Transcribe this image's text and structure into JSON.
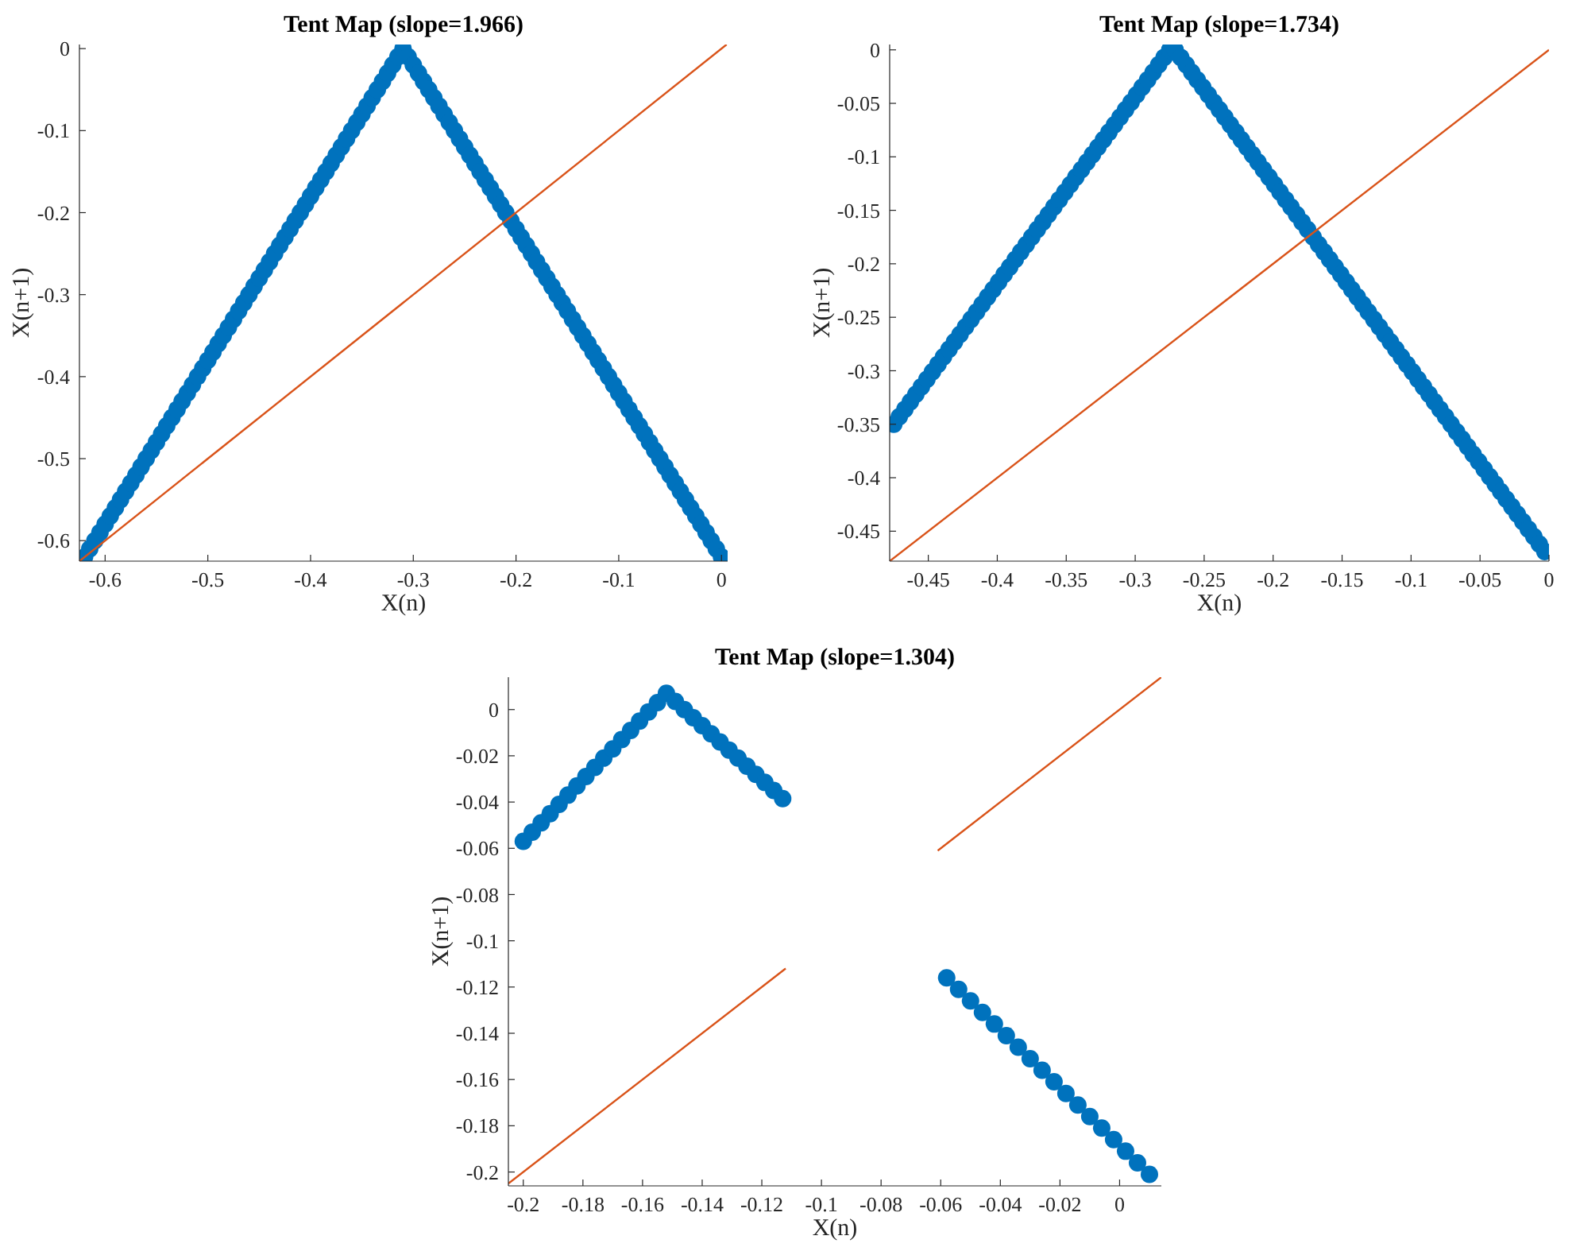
{
  "chart_data": [
    {
      "type": "scatter",
      "title": "Tent Map (slope=1.966)",
      "xlabel": "X(n)",
      "ylabel": "X(n+1)",
      "xlim": [
        -0.625,
        0.006
      ],
      "ylim": [
        -0.625,
        0.005
      ],
      "xticks": [
        -0.6,
        -0.5,
        -0.4,
        -0.3,
        -0.2,
        -0.1,
        0
      ],
      "yticks": [
        -0.6,
        -0.5,
        -0.4,
        -0.3,
        -0.2,
        -0.1,
        0
      ],
      "grid": false,
      "series": [
        {
          "color": "#0072bd",
          "marker": "circle",
          "x": [
            -0.62,
            -0.615,
            -0.61,
            -0.605,
            -0.6,
            -0.595,
            -0.59,
            -0.585,
            -0.58,
            -0.575,
            -0.57,
            -0.565,
            -0.56,
            -0.555,
            -0.55,
            -0.545,
            -0.54,
            -0.535,
            -0.53,
            -0.525,
            -0.52,
            -0.515,
            -0.51,
            -0.505,
            -0.5,
            -0.495,
            -0.49,
            -0.485,
            -0.48,
            -0.475,
            -0.47,
            -0.465,
            -0.46,
            -0.455,
            -0.45,
            -0.445,
            -0.44,
            -0.435,
            -0.43,
            -0.425,
            -0.42,
            -0.415,
            -0.41,
            -0.405,
            -0.4,
            -0.395,
            -0.39,
            -0.385,
            -0.38,
            -0.375,
            -0.37,
            -0.365,
            -0.36,
            -0.355,
            -0.35,
            -0.345,
            -0.34,
            -0.335,
            -0.33,
            -0.325,
            -0.32,
            -0.315,
            -0.31,
            -0.305,
            -0.3,
            -0.295,
            -0.29,
            -0.285,
            -0.28,
            -0.275,
            -0.27,
            -0.265,
            -0.26,
            -0.255,
            -0.25,
            -0.245,
            -0.24,
            -0.235,
            -0.23,
            -0.225,
            -0.22,
            -0.215,
            -0.21,
            -0.205,
            -0.2,
            -0.195,
            -0.19,
            -0.185,
            -0.18,
            -0.175,
            -0.17,
            -0.165,
            -0.16,
            -0.155,
            -0.15,
            -0.145,
            -0.14,
            -0.135,
            -0.13,
            -0.125,
            -0.12,
            -0.115,
            -0.11,
            -0.105,
            -0.1,
            -0.095,
            -0.09,
            -0.085,
            -0.08,
            -0.075,
            -0.07,
            -0.065,
            -0.06,
            -0.055,
            -0.05,
            -0.045,
            -0.04,
            -0.035,
            -0.03,
            -0.025,
            -0.02,
            -0.015,
            -0.01,
            -0.005,
            0
          ],
          "values": [
            -0.62,
            -0.61,
            -0.6,
            -0.59,
            -0.58,
            -0.57,
            -0.56,
            -0.55,
            -0.54,
            -0.53,
            -0.52,
            -0.51,
            -0.5,
            -0.49,
            -0.48,
            -0.47,
            -0.46,
            -0.45,
            -0.44,
            -0.43,
            -0.42,
            -0.41,
            -0.4,
            -0.39,
            -0.38,
            -0.37,
            -0.36,
            -0.35,
            -0.34,
            -0.33,
            -0.32,
            -0.31,
            -0.3,
            -0.29,
            -0.28,
            -0.27,
            -0.26,
            -0.25,
            -0.24,
            -0.23,
            -0.22,
            -0.21,
            -0.2,
            -0.19,
            -0.18,
            -0.17,
            -0.16,
            -0.15,
            -0.14,
            -0.13,
            -0.12,
            -0.11,
            -0.1,
            -0.09,
            -0.08,
            -0.07,
            -0.06,
            -0.05,
            -0.04,
            -0.03,
            -0.02,
            -0.01,
            0,
            -0.01,
            -0.02,
            -0.03,
            -0.04,
            -0.05,
            -0.06,
            -0.07,
            -0.08,
            -0.09,
            -0.1,
            -0.11,
            -0.12,
            -0.13,
            -0.14,
            -0.15,
            -0.16,
            -0.17,
            -0.18,
            -0.19,
            -0.2,
            -0.21,
            -0.22,
            -0.23,
            -0.24,
            -0.25,
            -0.26,
            -0.27,
            -0.28,
            -0.29,
            -0.3,
            -0.31,
            -0.32,
            -0.33,
            -0.34,
            -0.35,
            -0.36,
            -0.37,
            -0.38,
            -0.39,
            -0.4,
            -0.41,
            -0.42,
            -0.43,
            -0.44,
            -0.45,
            -0.46,
            -0.47,
            -0.48,
            -0.49,
            -0.5,
            -0.51,
            -0.52,
            -0.53,
            -0.54,
            -0.55,
            -0.56,
            -0.57,
            -0.58,
            -0.59,
            -0.6,
            -0.61,
            -0.62
          ]
        },
        {
          "type": "line",
          "color": "#d95319",
          "marker": "none",
          "line_style": "solid",
          "x": [
            -0.625,
            0.005
          ],
          "values": [
            -0.625,
            0.005
          ]
        }
      ]
    },
    {
      "type": "scatter",
      "title": "Tent Map (slope=1.734)",
      "xlabel": "X(n)",
      "ylabel": "X(n+1)",
      "xlim": [
        -0.478,
        0
      ],
      "ylim": [
        -0.478,
        0.005
      ],
      "xticks": [
        -0.45,
        -0.4,
        -0.35,
        -0.3,
        -0.25,
        -0.2,
        -0.15,
        -0.1,
        -0.05,
        0
      ],
      "yticks": [
        -0.45,
        -0.4,
        -0.35,
        -0.3,
        -0.25,
        -0.2,
        -0.15,
        -0.1,
        -0.05,
        0
      ],
      "grid": false,
      "series": [
        {
          "color": "#0072bd",
          "marker": "circle",
          "x": [
            -0.475,
            -0.471,
            -0.467,
            -0.463,
            -0.459,
            -0.455,
            -0.451,
            -0.447,
            -0.443,
            -0.439,
            -0.435,
            -0.431,
            -0.427,
            -0.423,
            -0.419,
            -0.415,
            -0.411,
            -0.407,
            -0.403,
            -0.399,
            -0.395,
            -0.391,
            -0.387,
            -0.383,
            -0.379,
            -0.375,
            -0.371,
            -0.367,
            -0.363,
            -0.359,
            -0.355,
            -0.351,
            -0.347,
            -0.343,
            -0.339,
            -0.335,
            -0.331,
            -0.327,
            -0.323,
            -0.319,
            -0.315,
            -0.311,
            -0.307,
            -0.303,
            -0.299,
            -0.295,
            -0.291,
            -0.287,
            -0.283,
            -0.279,
            -0.275,
            -0.271,
            -0.267,
            -0.263,
            -0.259,
            -0.255,
            -0.251,
            -0.247,
            -0.243,
            -0.239,
            -0.235,
            -0.231,
            -0.227,
            -0.223,
            -0.219,
            -0.215,
            -0.211,
            -0.207,
            -0.203,
            -0.199,
            -0.195,
            -0.191,
            -0.187,
            -0.183,
            -0.179,
            -0.175,
            -0.171,
            -0.167,
            -0.163,
            -0.159,
            -0.155,
            -0.151,
            -0.147,
            -0.143,
            -0.139,
            -0.135,
            -0.131,
            -0.127,
            -0.123,
            -0.119,
            -0.115,
            -0.111,
            -0.107,
            -0.103,
            -0.099,
            -0.095,
            -0.091,
            -0.087,
            -0.083,
            -0.079,
            -0.075,
            -0.071,
            -0.067,
            -0.063,
            -0.059,
            -0.055,
            -0.051,
            -0.047,
            -0.043,
            -0.039,
            -0.035,
            -0.031,
            -0.027,
            -0.023,
            -0.019,
            -0.015,
            -0.011,
            -0.007,
            -0.003
          ],
          "values": [
            -0.35,
            -0.343,
            -0.336,
            -0.329,
            -0.322,
            -0.315,
            -0.308,
            -0.301,
            -0.294,
            -0.287,
            -0.28,
            -0.273,
            -0.266,
            -0.259,
            -0.252,
            -0.245,
            -0.238,
            -0.231,
            -0.224,
            -0.217,
            -0.21,
            -0.203,
            -0.196,
            -0.189,
            -0.182,
            -0.175,
            -0.168,
            -0.161,
            -0.154,
            -0.147,
            -0.14,
            -0.133,
            -0.126,
            -0.119,
            -0.112,
            -0.105,
            -0.098,
            -0.091,
            -0.084,
            -0.077,
            -0.07,
            -0.063,
            -0.056,
            -0.049,
            -0.042,
            -0.035,
            -0.028,
            -0.021,
            -0.014,
            -0.007,
            0,
            0,
            -0.007,
            -0.014,
            -0.021,
            -0.028,
            -0.035,
            -0.042,
            -0.049,
            -0.056,
            -0.063,
            -0.07,
            -0.077,
            -0.084,
            -0.091,
            -0.098,
            -0.105,
            -0.112,
            -0.119,
            -0.126,
            -0.133,
            -0.14,
            -0.147,
            -0.154,
            -0.161,
            -0.168,
            -0.175,
            -0.182,
            -0.189,
            -0.196,
            -0.203,
            -0.21,
            -0.217,
            -0.224,
            -0.231,
            -0.238,
            -0.245,
            -0.252,
            -0.259,
            -0.266,
            -0.273,
            -0.28,
            -0.287,
            -0.294,
            -0.301,
            -0.308,
            -0.315,
            -0.322,
            -0.329,
            -0.336,
            -0.343,
            -0.35,
            -0.357,
            -0.364,
            -0.371,
            -0.378,
            -0.385,
            -0.392,
            -0.399,
            -0.406,
            -0.413,
            -0.42,
            -0.427,
            -0.434,
            -0.441,
            -0.448,
            -0.455,
            -0.462,
            -0.469
          ]
        },
        {
          "type": "line",
          "color": "#d95319",
          "marker": "none",
          "line_style": "solid",
          "x": [
            -0.478,
            0
          ],
          "values": [
            -0.478,
            0
          ]
        }
      ]
    },
    {
      "type": "scatter",
      "title": "Tent Map (slope=1.304)",
      "xlabel": "X(n)",
      "ylabel": "X(n+1)",
      "xlim": [
        -0.205,
        0.014
      ],
      "ylim": [
        -0.206,
        0.014
      ],
      "xticks": [
        -0.2,
        -0.18,
        -0.16,
        -0.14,
        -0.12,
        -0.1,
        -0.08,
        -0.06,
        -0.04,
        -0.02,
        0
      ],
      "yticks": [
        -0.2,
        -0.18,
        -0.16,
        -0.14,
        -0.12,
        -0.1,
        -0.08,
        -0.06,
        -0.04,
        -0.02,
        0
      ],
      "grid": false,
      "series": [
        {
          "color": "#0072bd",
          "marker": "circle",
          "x": [
            -0.2,
            -0.197,
            -0.194,
            -0.191,
            -0.188,
            -0.185,
            -0.182,
            -0.179,
            -0.176,
            -0.173,
            -0.17,
            -0.167,
            -0.164,
            -0.161,
            -0.158,
            -0.155,
            -0.152,
            -0.149,
            -0.146,
            -0.143,
            -0.14,
            -0.137,
            -0.134,
            -0.131,
            -0.128,
            -0.125,
            -0.122,
            -0.119,
            -0.116,
            -0.113,
            -0.058,
            -0.054,
            -0.05,
            -0.046,
            -0.042,
            -0.038,
            -0.034,
            -0.03,
            -0.026,
            -0.022,
            -0.018,
            -0.014,
            -0.01,
            -0.006,
            -0.002,
            0.002,
            0.006,
            0.01
          ],
          "values": [
            -0.057,
            -0.053,
            -0.049,
            -0.045,
            -0.041,
            -0.037,
            -0.033,
            -0.029,
            -0.025,
            -0.021,
            -0.017,
            -0.013,
            -0.009,
            -0.005,
            -0.001,
            0.003,
            0.007,
            0.0035,
            0,
            -0.0035,
            -0.007,
            -0.0105,
            -0.014,
            -0.0175,
            -0.021,
            -0.0245,
            -0.028,
            -0.0315,
            -0.035,
            -0.0385,
            -0.116,
            -0.121,
            -0.126,
            -0.131,
            -0.136,
            -0.141,
            -0.146,
            -0.151,
            -0.156,
            -0.161,
            -0.166,
            -0.171,
            -0.176,
            -0.181,
            -0.186,
            -0.191,
            -0.196,
            -0.201
          ]
        },
        {
          "type": "line",
          "color": "#d95319",
          "marker": "none",
          "line_style": "solid",
          "x": [
            -0.205,
            -0.112,
            -0.09,
            -0.061,
            0.014
          ],
          "values": [
            -0.205,
            -0.112,
            null,
            -0.061,
            0.014
          ]
        }
      ]
    }
  ]
}
